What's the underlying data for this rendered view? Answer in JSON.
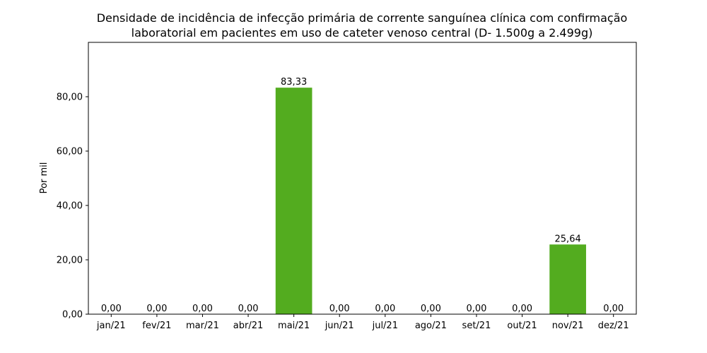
{
  "chart_data": {
    "type": "bar",
    "title": [
      "Densidade de incidência de infecção primária de corrente sanguínea clínica com confirmação",
      "laboratorial em pacientes em uso de cateter venoso central (D- 1.500g a 2.499g)"
    ],
    "xlabel": "",
    "ylabel": "Por mil",
    "categories": [
      "jan/21",
      "fev/21",
      "mar/21",
      "abr/21",
      "mai/21",
      "jun/21",
      "jul/21",
      "ago/21",
      "set/21",
      "out/21",
      "nov/21",
      "dez/21"
    ],
    "values": [
      0,
      0,
      0,
      0,
      83.33,
      0,
      0,
      0,
      0,
      0,
      25.64,
      0
    ],
    "data_labels": [
      "0,00",
      "0,00",
      "0,00",
      "0,00",
      "83,33",
      "0,00",
      "0,00",
      "0,00",
      "0,00",
      "0,00",
      "25,64",
      "0,00"
    ],
    "ylim": [
      0,
      100
    ],
    "yticks": [
      0,
      20,
      40,
      60,
      80
    ],
    "ytick_labels": [
      "0,00",
      "20,00",
      "40,00",
      "60,00",
      "80,00"
    ],
    "bar_color": "#53ac1f",
    "grid": false,
    "legend": "none"
  }
}
